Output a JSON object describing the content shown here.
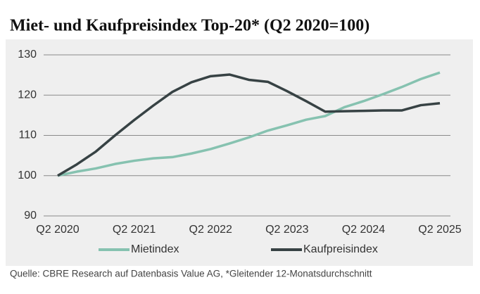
{
  "chart_data": {
    "type": "line",
    "title": "Miet- und Kaufpreisindex Top-20* (Q2 2020=100)",
    "source": "Quelle: CBRE Research auf Datenbasis Value AG, *Gleitender 12-Monatsdurchschnitt",
    "categories": [
      "Q2 2020",
      null,
      null,
      null,
      "Q2 2021",
      null,
      null,
      null,
      "Q2 2022",
      null,
      null,
      null,
      "Q2 2023",
      null,
      null,
      null,
      "Q2 2024",
      null,
      null,
      null,
      "Q2 2025"
    ],
    "series": [
      {
        "name": "Mietindex",
        "color": "#86c2b0",
        "values": [
          100,
          101,
          101.8,
          102.9,
          103.7,
          104.3,
          104.6,
          105.5,
          106.6,
          108,
          109.5,
          111.2,
          112.5,
          113.9,
          114.8,
          117,
          118.5,
          120.2,
          122,
          124,
          125.6
        ]
      },
      {
        "name": "Kaufpreisindex",
        "color": "#374244",
        "values": [
          100,
          102.8,
          106,
          110,
          113.8,
          117.4,
          120.8,
          123.2,
          124.7,
          125.1,
          123.8,
          123.3,
          121,
          118.5,
          115.9,
          116,
          116.1,
          116.2,
          116.2,
          117.5,
          118
        ]
      }
    ],
    "ylim": [
      90,
      130
    ],
    "yticks": [
      90,
      100,
      110,
      120,
      130
    ],
    "grid": true
  }
}
